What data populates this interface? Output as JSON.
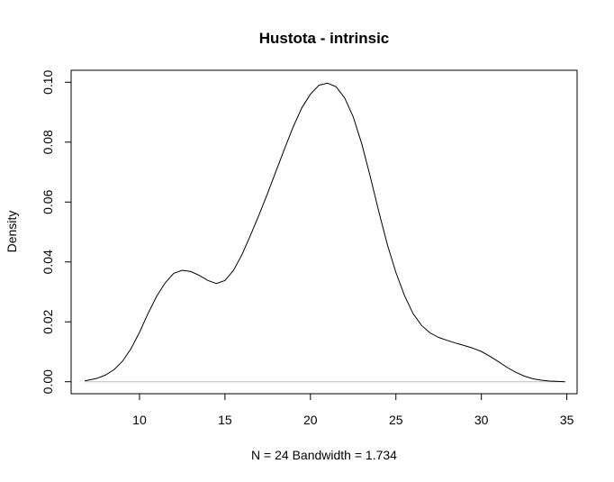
{
  "chart_data": {
    "type": "line",
    "title": "Hustota - intrinsic",
    "xlabel": "N = 24   Bandwidth = 1.734",
    "ylabel": "Density",
    "xlim": [
      6.0,
      35.6
    ],
    "ylim": [
      -0.004,
      0.104
    ],
    "xticks": [
      10,
      15,
      20,
      25,
      30,
      35
    ],
    "yticks": [
      0.0,
      0.02,
      0.04,
      0.06,
      0.08,
      0.1
    ],
    "xtick_labels": [
      "10",
      "15",
      "20",
      "25",
      "30",
      "35"
    ],
    "ytick_labels": [
      "0.00",
      "0.02",
      "0.04",
      "0.06",
      "0.08",
      "0.10"
    ],
    "grid": false,
    "baseline": 0.0,
    "series": [
      {
        "x": [
          6.8,
          7.5,
          8.0,
          8.5,
          9.0,
          9.5,
          10.0,
          10.5,
          11.0,
          11.5,
          12.0,
          12.5,
          13.0,
          13.5,
          14.0,
          14.5,
          15.0,
          15.5,
          16.0,
          16.5,
          17.0,
          17.5,
          18.0,
          18.5,
          19.0,
          19.5,
          20.0,
          20.5,
          21.0,
          21.5,
          22.0,
          22.5,
          23.0,
          23.5,
          24.0,
          24.5,
          25.0,
          25.5,
          26.0,
          26.5,
          27.0,
          27.5,
          28.0,
          28.5,
          29.0,
          29.5,
          30.0,
          30.5,
          31.0,
          31.5,
          32.0,
          32.5,
          33.0,
          33.5,
          34.0,
          34.5,
          34.9
        ],
        "y": [
          0.0003,
          0.0011,
          0.0022,
          0.004,
          0.0068,
          0.011,
          0.0165,
          0.0228,
          0.0285,
          0.033,
          0.0362,
          0.0372,
          0.0368,
          0.0355,
          0.0338,
          0.0328,
          0.0338,
          0.0372,
          0.0425,
          0.049,
          0.0558,
          0.063,
          0.0705,
          0.078,
          0.0852,
          0.0915,
          0.096,
          0.099,
          0.0997,
          0.0985,
          0.0948,
          0.0885,
          0.0795,
          0.0685,
          0.0568,
          0.0458,
          0.0365,
          0.0288,
          0.0228,
          0.0188,
          0.0163,
          0.0148,
          0.0138,
          0.0129,
          0.0121,
          0.0112,
          0.0101,
          0.0085,
          0.0067,
          0.0048,
          0.0032,
          0.0019,
          0.001,
          0.0005,
          0.0002,
          0.0001,
          0.0
        ]
      }
    ]
  }
}
